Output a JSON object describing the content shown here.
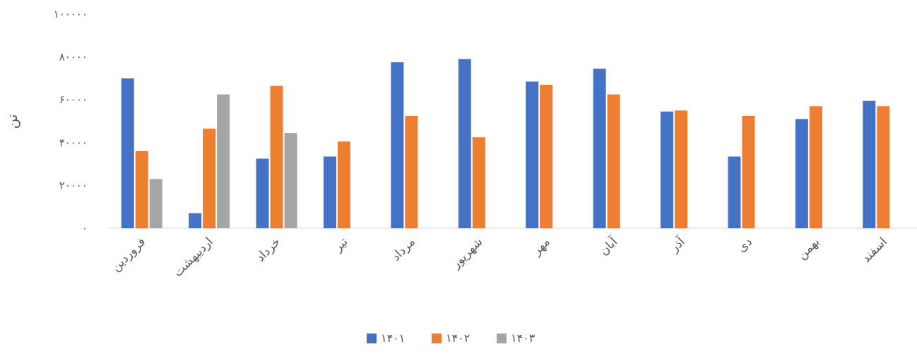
{
  "chart_data": {
    "type": "bar",
    "title": "",
    "xlabel": "",
    "ylabel": "تن",
    "ylim": [
      0,
      100000
    ],
    "yticks": [
      "۰",
      "۲۰۰۰۰",
      "۴۰۰۰۰",
      "۶۰۰۰۰",
      "۸۰۰۰۰",
      "۱۰۰۰۰۰"
    ],
    "categories": [
      "فروردین",
      "اردیبهشت",
      "خرداد",
      "تیر",
      "مرداد",
      "شهریور",
      "مهر",
      "آبان",
      "آذر",
      "دی",
      "بهمن",
      "اسفند"
    ],
    "series": [
      {
        "name": "۱۴۰۱",
        "color": "#4472C4",
        "values": [
          70000,
          7000,
          32500,
          33500,
          77500,
          79000,
          68500,
          74500,
          54500,
          33500,
          51000,
          59500
        ]
      },
      {
        "name": "۱۴۰۲",
        "color": "#ED7D31",
        "values": [
          36000,
          46500,
          66500,
          40500,
          52500,
          42500,
          67000,
          62500,
          55000,
          52500,
          57000,
          57000
        ]
      },
      {
        "name": "۱۴۰۳",
        "color": "#A5A5A5",
        "values": [
          23000,
          62500,
          44500,
          null,
          null,
          null,
          null,
          null,
          null,
          null,
          null,
          null
        ]
      }
    ],
    "grid": false,
    "legend_position": "bottom"
  }
}
